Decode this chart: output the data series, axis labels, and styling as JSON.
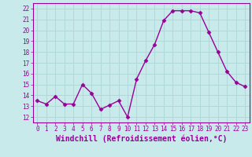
{
  "x": [
    0,
    1,
    2,
    3,
    4,
    5,
    6,
    7,
    8,
    9,
    10,
    11,
    12,
    13,
    14,
    15,
    16,
    17,
    18,
    19,
    20,
    21,
    22,
    23
  ],
  "y": [
    13.5,
    13.2,
    13.9,
    13.2,
    13.2,
    15.0,
    14.2,
    12.7,
    13.1,
    13.5,
    12.0,
    15.5,
    17.2,
    18.7,
    20.9,
    21.8,
    21.8,
    21.8,
    21.6,
    19.8,
    18.0,
    16.2,
    15.2,
    14.8
  ],
  "line_color": "#990099",
  "marker": "D",
  "markersize": 2.5,
  "linewidth": 1.0,
  "xlabel": "Windchill (Refroidissement éolien,°C)",
  "xlim": [
    -0.5,
    23.5
  ],
  "ylim": [
    11.5,
    22.5
  ],
  "yticks": [
    12,
    13,
    14,
    15,
    16,
    17,
    18,
    19,
    20,
    21,
    22
  ],
  "xticks": [
    0,
    1,
    2,
    3,
    4,
    5,
    6,
    7,
    8,
    9,
    10,
    11,
    12,
    13,
    14,
    15,
    16,
    17,
    18,
    19,
    20,
    21,
    22,
    23
  ],
  "bg_color": "#c8eaea",
  "grid_color": "#b0d8d8",
  "line_border_color": "#990099",
  "tick_label_color": "#990099",
  "xlabel_color": "#990099",
  "tick_fontsize": 5.5,
  "xlabel_fontsize": 7.0
}
